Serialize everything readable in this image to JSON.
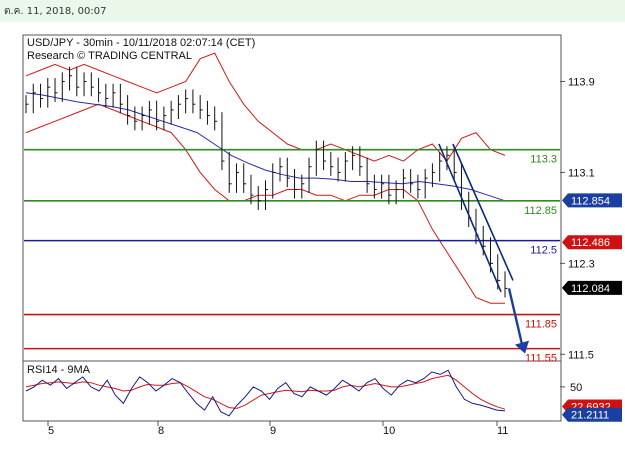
{
  "header": {
    "datetime": "ต.ค. 11, 2018, 00:07"
  },
  "chart_data": [
    {
      "type": "line",
      "title": "USD/JPY - 30min - 10/11/2018 02:07:14 (CET)",
      "subtitle": "Research © TRADING CENTRAL",
      "x_ticks": [
        "5",
        "8",
        "9",
        "10",
        "11"
      ],
      "y_ticks": [
        113.9,
        113.1,
        112.3,
        111.5
      ],
      "ylim": [
        111.45,
        114.3
      ],
      "price_series": [
        113.7,
        113.8,
        113.75,
        113.85,
        113.8,
        113.9,
        113.95,
        113.85,
        113.9,
        113.85,
        113.8,
        113.75,
        113.8,
        113.7,
        113.6,
        113.55,
        113.6,
        113.65,
        113.55,
        113.6,
        113.65,
        113.7,
        113.75,
        113.7,
        113.65,
        113.6,
        113.55,
        113.2,
        113.0,
        113.1,
        113.0,
        112.9,
        112.85,
        112.95,
        113.1,
        113.15,
        113.05,
        112.95,
        113.0,
        113.15,
        113.3,
        113.2,
        113.15,
        113.1,
        113.2,
        113.25,
        113.15,
        113.0,
        112.95,
        113.0,
        112.9,
        112.95,
        113.05,
        113.0,
        112.95,
        113.05,
        113.1,
        113.2,
        113.25,
        113.1,
        112.85,
        112.7,
        112.55,
        112.45,
        112.3,
        112.15,
        112.08
      ],
      "upper_band": [
        113.95,
        114.0,
        114.05,
        114.0,
        114.05,
        114.0,
        113.95,
        113.9,
        113.85,
        113.8,
        113.85,
        113.9,
        114.1,
        114.15,
        113.9,
        113.7,
        113.55,
        113.45,
        113.35,
        113.3,
        113.3,
        113.35,
        113.3,
        113.25,
        113.2,
        113.25,
        113.2,
        113.3,
        113.35,
        113.2,
        113.4,
        113.45,
        113.3,
        113.25
      ],
      "lower_band": [
        113.45,
        113.5,
        113.55,
        113.6,
        113.65,
        113.7,
        113.65,
        113.6,
        113.55,
        113.5,
        113.45,
        113.3,
        113.1,
        112.95,
        112.85,
        112.85,
        112.9,
        112.9,
        112.95,
        112.95,
        112.9,
        112.9,
        112.85,
        112.9,
        112.9,
        112.95,
        112.95,
        112.85,
        112.6,
        112.4,
        112.2,
        112.0,
        111.95,
        111.95
      ],
      "moving_average": [
        113.8,
        113.78,
        113.75,
        113.72,
        113.7,
        113.68,
        113.65,
        113.6,
        113.55,
        113.5,
        113.45,
        113.35,
        113.25,
        113.18,
        113.12,
        113.08,
        113.05,
        113.05,
        113.04,
        113.02,
        113.02,
        113.01,
        113.0,
        113.02,
        113.0,
        112.98,
        112.95,
        112.9,
        112.85
      ],
      "levels": [
        {
          "label": "113.3",
          "value": 113.3,
          "color": "#2e8b1e"
        },
        {
          "label": "112.85",
          "value": 112.85,
          "color": "#2e8b1e"
        },
        {
          "label": "112.5",
          "value": 112.5,
          "color": "#1a1aa0"
        },
        {
          "label": "111.85",
          "value": 111.85,
          "color": "#cc1111"
        },
        {
          "label": "111.55",
          "value": 111.55,
          "color": "#cc1111"
        }
      ],
      "price_tags": [
        {
          "label": "112.854",
          "value": 112.854,
          "bg": "#1a3fa0"
        },
        {
          "label": "112.486",
          "value": 112.486,
          "bg": "#d01111"
        },
        {
          "label": "112.084",
          "value": 112.084,
          "bg": "#000000"
        }
      ],
      "projection": {
        "from": 112.08,
        "to": 111.55
      }
    },
    {
      "type": "line",
      "title": "RSI14 - 9MA",
      "y_ticks": [
        50
      ],
      "ylim": [
        10,
        80
      ],
      "rsi": [
        45,
        50,
        58,
        52,
        60,
        48,
        55,
        62,
        50,
        45,
        58,
        40,
        30,
        48,
        62,
        55,
        45,
        52,
        60,
        55,
        42,
        30,
        22,
        38,
        20,
        15,
        28,
        38,
        50,
        45,
        35,
        48,
        55,
        42,
        38,
        50,
        45,
        40,
        48,
        58,
        52,
        45,
        55,
        60,
        48,
        40,
        52,
        58,
        55,
        60,
        68,
        65,
        70,
        50,
        35,
        30,
        28,
        25,
        22,
        21
      ],
      "rsi_ma": [
        50,
        52,
        54,
        55,
        56,
        55,
        54,
        56,
        55,
        52,
        50,
        48,
        45,
        46,
        50,
        53,
        52,
        52,
        54,
        55,
        50,
        44,
        38,
        35,
        30,
        25,
        24,
        28,
        34,
        40,
        42,
        44,
        46,
        45,
        44,
        46,
        45,
        45,
        46,
        50,
        52,
        50,
        52,
        54,
        52,
        50,
        50,
        52,
        54,
        56,
        60,
        62,
        64,
        58,
        50,
        42,
        35,
        30,
        26,
        23
      ],
      "price_tags": [
        {
          "label": "22.6932",
          "value": 22.6932,
          "bg": "#d01111"
        },
        {
          "label": "21.2111",
          "value": 21.2111,
          "bg": "#1a3fa0"
        }
      ]
    }
  ]
}
